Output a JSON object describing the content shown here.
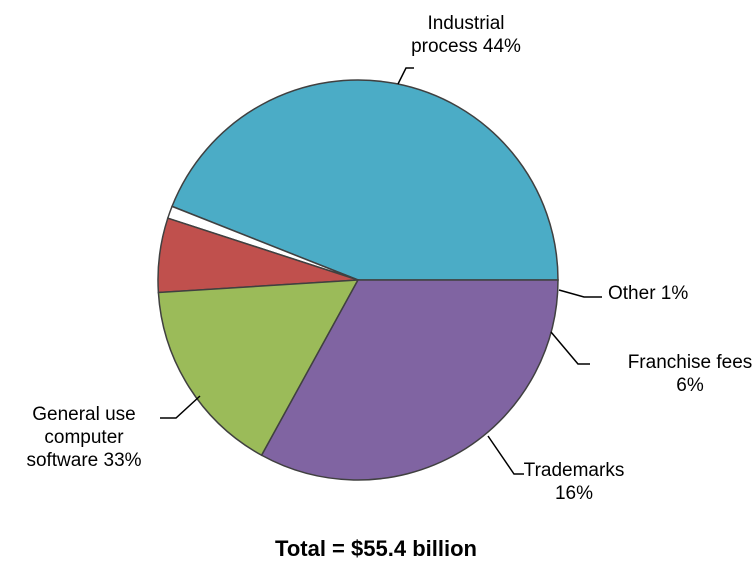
{
  "chart_data": {
    "type": "pie",
    "title": "",
    "footnote": "Total = $55.4 billion",
    "slices": [
      {
        "label_lines": [
          "Industrial",
          "process 44%"
        ],
        "name": "Industrial process",
        "value": 44,
        "color": "#4BACC6"
      },
      {
        "label_lines": [
          "Other 1%"
        ],
        "name": "Other",
        "value": 1,
        "color": "#FFFFFF"
      },
      {
        "label_lines": [
          "Franchise fees",
          "6%"
        ],
        "name": "Franchise fees",
        "value": 6,
        "color": "#C0504D"
      },
      {
        "label_lines": [
          "Trademarks",
          "16%"
        ],
        "name": "Trademarks",
        "value": 16,
        "color": "#9BBB59"
      },
      {
        "label_lines": [
          "General use",
          "computer",
          "software 33%"
        ],
        "name": "General use computer software",
        "value": 33,
        "color": "#8064A2"
      }
    ]
  }
}
